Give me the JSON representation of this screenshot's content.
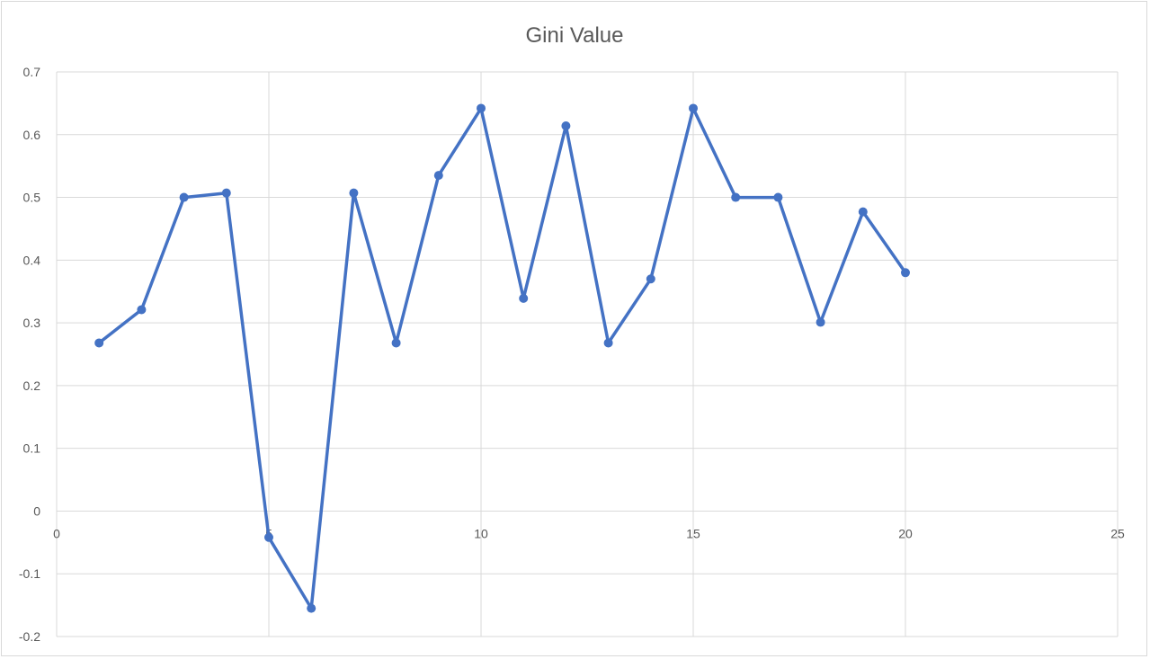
{
  "chart_data": {
    "type": "scatter",
    "title": "Gini Value",
    "xlabel": "",
    "ylabel": "",
    "xlim": [
      0,
      25
    ],
    "ylim": [
      -0.2,
      0.7
    ],
    "x_ticks": [
      "0",
      "5",
      "10",
      "15",
      "20",
      "25"
    ],
    "y_ticks": [
      "-0.2",
      "-0.1",
      "0",
      "0.1",
      "0.2",
      "0.3",
      "0.4",
      "0.5",
      "0.6",
      "0.7"
    ],
    "grid": true,
    "legend": "none",
    "series": [
      {
        "color": "#4472c4",
        "x": [
          1,
          2,
          3,
          4,
          5,
          6,
          7,
          8,
          9,
          10,
          11,
          12,
          13,
          14,
          15,
          16,
          17,
          18,
          19,
          20
        ],
        "y": [
          0.268,
          0.321,
          0.5,
          0.507,
          -0.042,
          -0.155,
          0.507,
          0.268,
          0.535,
          0.642,
          0.339,
          0.614,
          0.268,
          0.37,
          0.642,
          0.5,
          0.5,
          0.301,
          0.477,
          0.38
        ]
      }
    ]
  }
}
